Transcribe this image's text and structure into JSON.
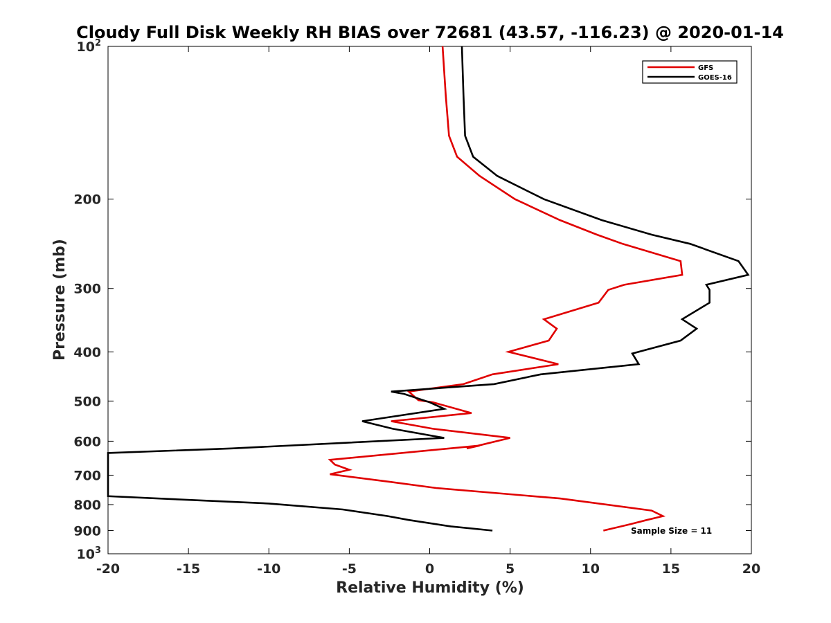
{
  "chart_data": {
    "type": "line",
    "title": "Cloudy Full Disk Weekly RH BIAS over 72681 (43.57, -116.23) @ 2020-01-14",
    "xlabel": "Relative Humidity (%)",
    "ylabel": "Pressure (mb)",
    "xlim": [
      -20,
      20
    ],
    "ylim": [
      100,
      1000
    ],
    "yscale": "log",
    "y_reversed": true,
    "grid": false,
    "legend_position": "top-right",
    "x_ticks": [
      -20,
      -15,
      -10,
      -5,
      0,
      5,
      10,
      15,
      20
    ],
    "y_ticks": [
      {
        "value": 100,
        "base": "10",
        "exp": "2"
      },
      {
        "value": 200,
        "label": "200"
      },
      {
        "value": 300,
        "label": "300"
      },
      {
        "value": 400,
        "label": "400"
      },
      {
        "value": 500,
        "label": "500"
      },
      {
        "value": 600,
        "label": "600"
      },
      {
        "value": 700,
        "label": "700"
      },
      {
        "value": 800,
        "label": "800"
      },
      {
        "value": 900,
        "label": "900"
      },
      {
        "value": 1000,
        "base": "10",
        "exp": "3"
      }
    ],
    "series": [
      {
        "name": "GFS",
        "color": "#e00000",
        "points": [
          [
            0.8,
            100
          ],
          [
            1.0,
            125
          ],
          [
            1.2,
            150
          ],
          [
            1.7,
            165
          ],
          [
            3.1,
            180
          ],
          [
            5.3,
            200
          ],
          [
            8.1,
            220
          ],
          [
            10.4,
            235
          ],
          [
            12.0,
            245
          ],
          [
            15.6,
            265
          ],
          [
            15.7,
            282
          ],
          [
            12.1,
            295
          ],
          [
            11.1,
            302
          ],
          [
            10.5,
            320
          ],
          [
            7.1,
            345
          ],
          [
            7.9,
            360
          ],
          [
            7.4,
            380
          ],
          [
            4.9,
            400
          ],
          [
            8.0,
            423
          ],
          [
            3.9,
            443
          ],
          [
            2.1,
            463
          ],
          [
            -1.3,
            479
          ],
          [
            -0.7,
            498
          ],
          [
            0.2,
            503
          ],
          [
            2.6,
            528
          ],
          [
            -2.4,
            548
          ],
          [
            0.2,
            567
          ],
          [
            5.0,
            591
          ],
          [
            2.3,
            620
          ],
          [
            3.1,
            612
          ],
          [
            -6.2,
            653
          ],
          [
            -5.9,
            667
          ],
          [
            -5.0,
            683
          ],
          [
            -6.2,
            697
          ],
          [
            -2.4,
            722
          ],
          [
            0.4,
            742
          ],
          [
            8.1,
            778
          ],
          [
            13.8,
            822
          ],
          [
            14.5,
            843
          ],
          [
            13.5,
            858
          ],
          [
            12.5,
            874
          ],
          [
            10.8,
            900
          ]
        ]
      },
      {
        "name": "GOES-16",
        "color": "#000000",
        "points": [
          [
            2.0,
            100
          ],
          [
            2.1,
            125
          ],
          [
            2.2,
            150
          ],
          [
            2.7,
            165
          ],
          [
            4.2,
            180
          ],
          [
            7.1,
            200
          ],
          [
            10.7,
            220
          ],
          [
            13.8,
            235
          ],
          [
            16.2,
            245
          ],
          [
            19.2,
            265
          ],
          [
            19.8,
            282
          ],
          [
            17.2,
            295
          ],
          [
            17.4,
            302
          ],
          [
            17.4,
            320
          ],
          [
            15.7,
            345
          ],
          [
            16.6,
            360
          ],
          [
            15.6,
            380
          ],
          [
            12.6,
            403
          ],
          [
            13.0,
            423
          ],
          [
            6.9,
            443
          ],
          [
            4.0,
            463
          ],
          [
            -2.4,
            479
          ],
          [
            -1.6,
            484
          ],
          [
            0.0,
            503
          ],
          [
            0.9,
            518
          ],
          [
            -4.2,
            548
          ],
          [
            -2.3,
            567
          ],
          [
            0.9,
            591
          ],
          [
            -12.3,
            620
          ],
          [
            -20.0,
            633
          ],
          [
            -20.0,
            770
          ],
          [
            -10.0,
            796
          ],
          [
            -5.4,
            818
          ],
          [
            -2.6,
            843
          ],
          [
            -1.3,
            858
          ],
          [
            1.3,
            883
          ],
          [
            3.9,
            900
          ]
        ]
      }
    ],
    "annotation": "Sample Size = 11"
  }
}
